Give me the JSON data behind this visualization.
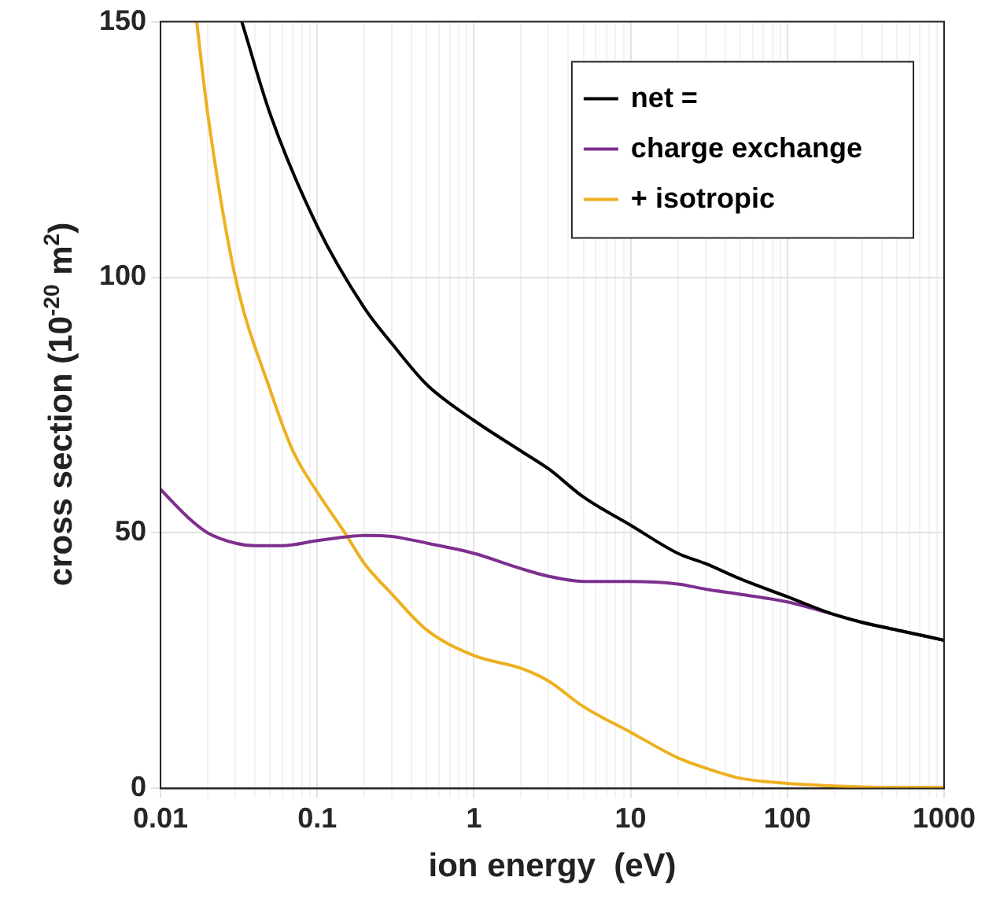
{
  "chart_data": {
    "type": "line",
    "xlabel": "ion energy  (eV)",
    "ylabel": "cross section  (10$^{-20}$ m$^{2}$)",
    "log": "x",
    "xlim": [
      0.01,
      1000
    ],
    "xticks": [
      0.01,
      0.1,
      1,
      10,
      100,
      1000
    ],
    "ylim": [
      0,
      150
    ],
    "yticks": [
      0,
      50,
      100,
      150
    ],
    "grid": true,
    "legend": "top right",
    "marker": "none",
    "line_style": "solid",
    "series": [
      {
        "name": "net =",
        "color": "#000000",
        "x": [
          0.033,
          0.05,
          0.1,
          0.2,
          0.3,
          0.5,
          1,
          2,
          3,
          5,
          10,
          20,
          30,
          50,
          100,
          200,
          300,
          500,
          1000
        ],
        "values": [
          150,
          132,
          110,
          94,
          87,
          79,
          72,
          66,
          62.5,
          57,
          51.5,
          46,
          44,
          41,
          37.5,
          34,
          32.5,
          31,
          29
        ]
      },
      {
        "name": "charge exchange",
        "color": "#7e2f8e",
        "x": [
          0.01,
          0.015,
          0.02,
          0.03,
          0.04,
          0.06,
          0.1,
          0.15,
          0.2,
          0.3,
          0.5,
          1,
          2,
          3,
          5,
          10,
          20,
          30,
          50,
          100,
          200,
          300,
          500,
          1000
        ],
        "values": [
          58.5,
          53,
          50,
          48,
          47.5,
          47.5,
          48.5,
          49.2,
          49.5,
          49.3,
          48,
          46,
          43,
          41.5,
          40.5,
          40.5,
          40,
          39,
          38,
          36.5,
          34,
          32.5,
          31,
          29
        ]
      },
      {
        "name": "+ isotropic",
        "color": "#edb120",
        "x": [
          0.017,
          0.02,
          0.03,
          0.05,
          0.07,
          0.1,
          0.15,
          0.2,
          0.3,
          0.5,
          1,
          2,
          3,
          5,
          10,
          20,
          30,
          50,
          100,
          200,
          500,
          1000
        ],
        "values": [
          150,
          132,
          100,
          78,
          66,
          58,
          50,
          44,
          38,
          31,
          26,
          23.5,
          21,
          16,
          11,
          6,
          4,
          2,
          1,
          0.5,
          0.2,
          0.2
        ]
      }
    ]
  }
}
